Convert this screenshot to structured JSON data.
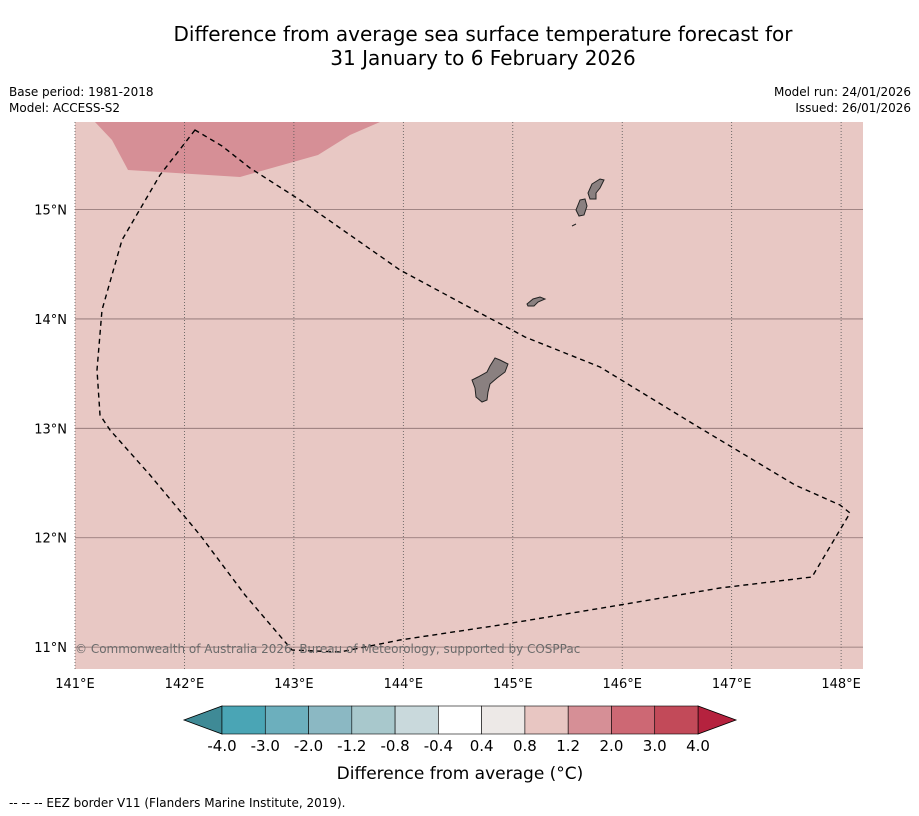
{
  "title": {
    "line1": "Difference from average sea surface temperature forecast for",
    "line2": "31 January to 6 February 2026"
  },
  "info_left": {
    "base_period": "Base period: 1981-2018",
    "model": "Model: ACCESS-S2"
  },
  "info_right": {
    "model_run": "Model run: 24/01/2026",
    "issued": "Issued: 26/01/2026"
  },
  "map": {
    "lon_labels": [
      "141°E",
      "142°E",
      "143°E",
      "144°E",
      "145°E",
      "146°E",
      "147°E",
      "148°E"
    ],
    "lat_labels": [
      "15°N",
      "14°N",
      "13°N",
      "12°N",
      "11°N"
    ],
    "lon_range": [
      141.0,
      148.2
    ],
    "lat_range": [
      10.8,
      15.8
    ],
    "background_anomaly": "0.8 to 1.2",
    "warm_patch_anomaly": "1.2 to 2.0",
    "copyright": "© Commonwealth of Australia 2026, Bureau of Meteorology, supported by COSPPac"
  },
  "colorbar": {
    "ticks": [
      "-4.0",
      "-3.0",
      "-2.0",
      "-1.2",
      "-0.8",
      "-0.4",
      "0.4",
      "0.8",
      "1.2",
      "2.0",
      "3.0",
      "4.0"
    ],
    "colors": [
      "#4aa5b5",
      "#6cafbd",
      "#8bb8c3",
      "#a8c8cc",
      "#c9d9dc",
      "#ffffff",
      "#ede9e7",
      "#e8c6c2",
      "#d68f96",
      "#cd6874",
      "#c24a59"
    ],
    "under_color": "#3f8a96",
    "over_color": "#b5223e",
    "label": "Difference from average (°C)"
  },
  "colors": {
    "background_fill": "#e8c8c4",
    "warm_fill": "#d68f96",
    "land": "#8a8080"
  },
  "footnote": "-- -- -- EEZ border V11 (Flanders Marine Institute, 2019)."
}
